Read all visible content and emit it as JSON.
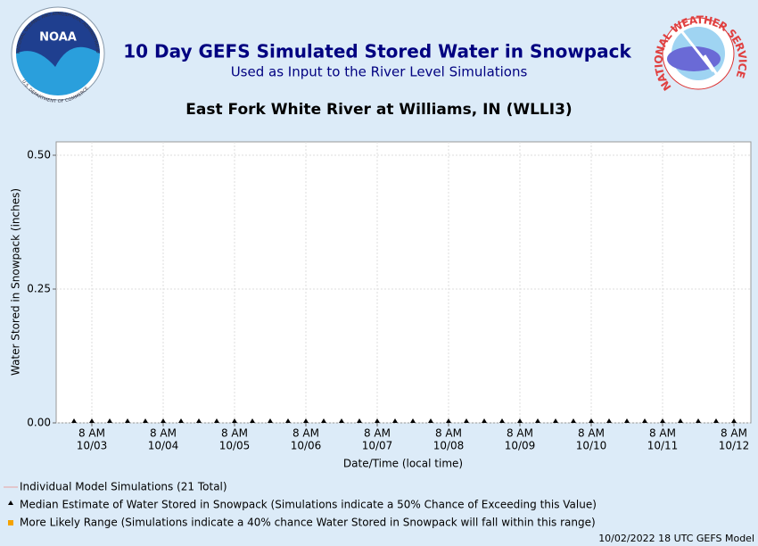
{
  "chart_data": {
    "type": "line",
    "title": "10 Day GEFS Simulated Stored Water in Snowpack",
    "subtitle": "Used as Input to the River Level Simulations",
    "location": "East Fork White River at Williams, IN (WLLI3)",
    "ylabel": "Water Stored in Snowpack (inches)",
    "xlabel": "Date/Time (local time)",
    "footer": "10/02/2022 18 UTC GEFS Model",
    "logos": {
      "noaa": {
        "name": "NOAA",
        "top": "NATIONAL OCEANIC AND ATMOSPHERIC ADMINISTRATION",
        "bottom": "U.S. DEPARTMENT OF COMMERCE"
      },
      "nws": {
        "ring": "NATIONAL WEATHER SERVICE"
      }
    },
    "categories": [
      null,
      [
        "8 AM",
        "10/03"
      ],
      null,
      null,
      null,
      [
        "8 AM",
        "10/04"
      ],
      null,
      null,
      null,
      [
        "8 AM",
        "10/05"
      ],
      null,
      null,
      null,
      [
        "8 AM",
        "10/06"
      ],
      null,
      null,
      null,
      [
        "8 AM",
        "10/07"
      ],
      null,
      null,
      null,
      [
        "8 AM",
        "10/08"
      ],
      null,
      null,
      null,
      [
        "8 AM",
        "10/09"
      ],
      null,
      null,
      null,
      [
        "8 AM",
        "10/10"
      ],
      null,
      null,
      null,
      [
        "8 AM",
        "10/11"
      ],
      null,
      null,
      null,
      [
        "8 AM",
        "10/12"
      ]
    ],
    "series": [
      {
        "name": "Median Estimate of Water Stored in Snowpack (Simulations indicate a 50% Chance of Exceeding this Value)",
        "color": "#000000",
        "values": [
          0,
          0,
          0,
          0,
          0,
          0,
          0,
          0,
          0,
          0,
          0,
          0,
          0,
          0,
          0,
          0,
          0,
          0,
          0,
          0,
          0,
          0,
          0,
          0,
          0,
          0,
          0,
          0,
          0,
          0,
          0,
          0,
          0,
          0,
          0,
          0,
          0,
          0
        ]
      }
    ],
    "legend": [
      {
        "name": "Individual Model Simulations (21 Total)",
        "color": "#e8a0a0",
        "marker": "line"
      },
      {
        "name": "Median Estimate of Water Stored in Snowpack (Simulations indicate a 50% Chance of Exceeding this Value)",
        "color": "#000000",
        "marker": "triangle"
      },
      {
        "name": "More Likely Range (Simulations indicate a 40% chance Water Stored in Snowpack will fall within this range)",
        "color": "#f5a300",
        "marker": "square"
      }
    ],
    "ylim": [
      0,
      0.525
    ],
    "yticks": [
      {
        "value": 0,
        "label": "0.00"
      },
      {
        "value": 0.25,
        "label": "0.25"
      },
      {
        "value": 0.5,
        "label": "0.50"
      }
    ],
    "grid": true
  }
}
